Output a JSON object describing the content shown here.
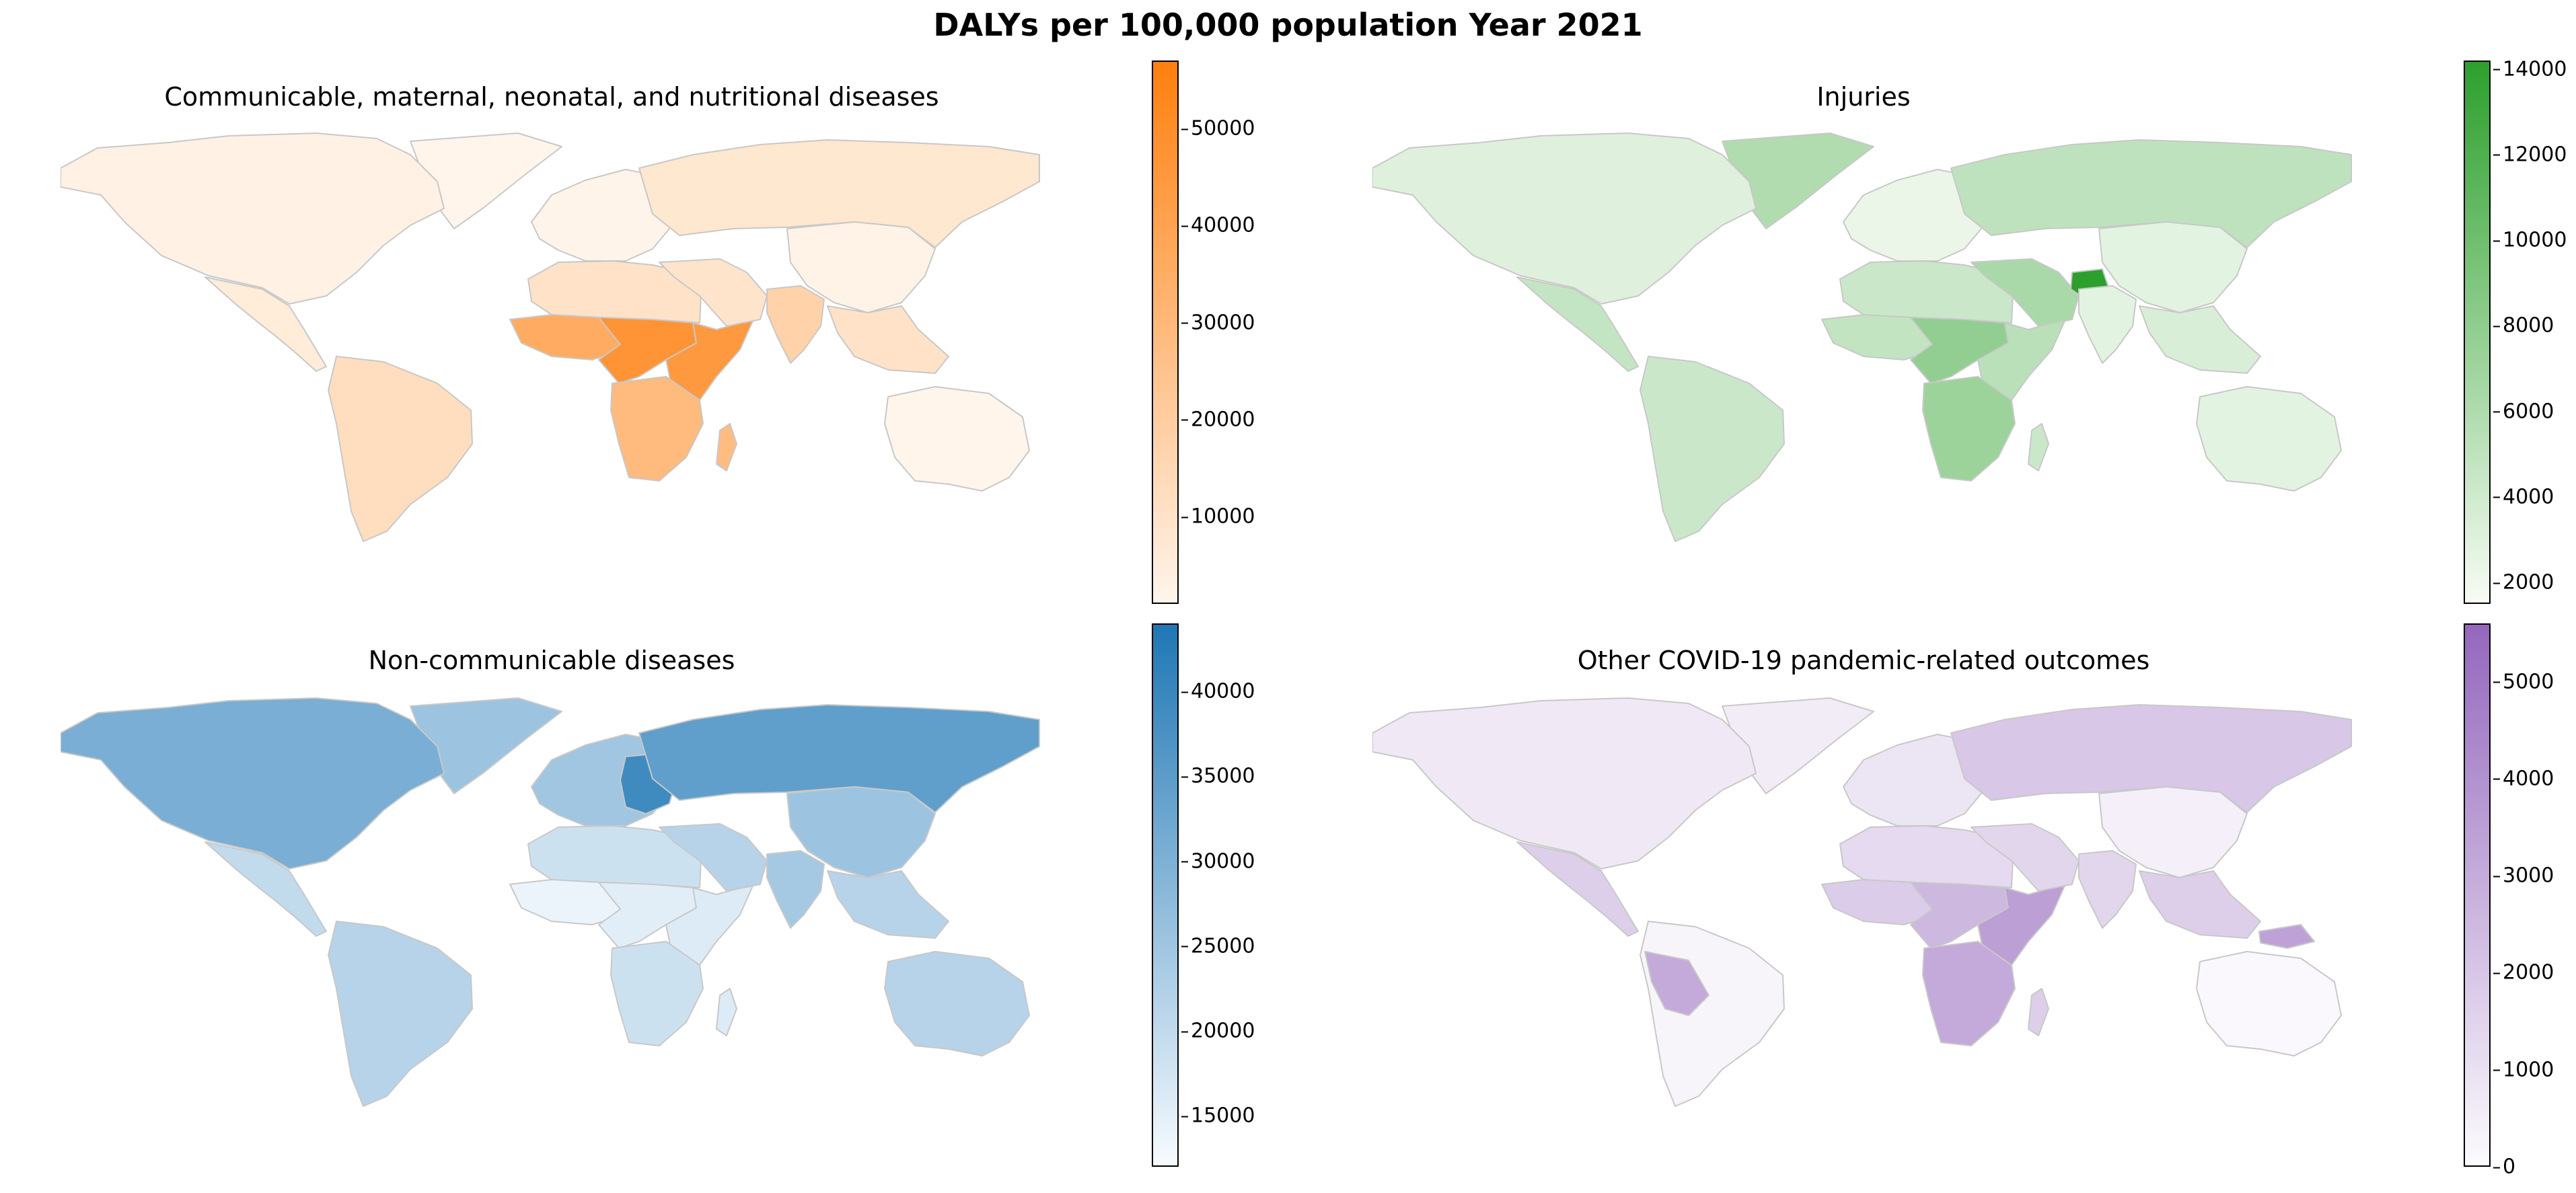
{
  "figure": {
    "title": "DALYs per 100,000 population Year 2021"
  },
  "panels": [
    {
      "title": "Communicable, maternal, neonatal, and nutritional diseases",
      "colorbar": {
        "min": 1000,
        "max": 57000,
        "ticks": [
          "10000",
          "20000",
          "30000",
          "40000",
          "50000"
        ],
        "low_color": "#fff5eb",
        "high_color": "#ff7f0e"
      },
      "regions": {
        "north_america": 0.03,
        "greenland": 0.0,
        "central_america": 0.08,
        "south_america": 0.2,
        "europe": 0.01,
        "russia": 0.12,
        "north_africa": 0.16,
        "west_africa": 0.62,
        "central_africa": 0.82,
        "east_africa": 0.78,
        "southern_africa": 0.5,
        "madagascar": 0.48,
        "middle_east": 0.14,
        "south_asia": 0.3,
        "china": 0.02,
        "southeast_asia": 0.16,
        "australia": 0.0
      }
    },
    {
      "title": "Injuries",
      "colorbar": {
        "min": 1500,
        "max": 14200,
        "ticks": [
          "2000",
          "4000",
          "6000",
          "8000",
          "10000",
          "12000",
          "14000"
        ],
        "low_color": "#f7fcf5",
        "high_color": "#2ca02c"
      },
      "regions": {
        "north_america": 0.12,
        "greenland": 0.35,
        "central_america": 0.25,
        "south_america": 0.22,
        "europe": 0.06,
        "russia": 0.28,
        "north_africa": 0.22,
        "west_africa": 0.26,
        "central_africa": 0.5,
        "east_africa": 0.3,
        "southern_africa": 0.45,
        "madagascar": 0.22,
        "middle_east": 0.38,
        "afghanistan": 1.0,
        "south_asia": 0.1,
        "china": 0.1,
        "southeast_asia": 0.15,
        "australia": 0.1
      }
    },
    {
      "title": "Non-communicable diseases",
      "colorbar": {
        "min": 12000,
        "max": 44000,
        "ticks": [
          "15000",
          "20000",
          "25000",
          "30000",
          "35000",
          "40000"
        ],
        "low_color": "#f7fbff",
        "high_color": "#1f77b4"
      },
      "regions": {
        "north_america": 0.58,
        "greenland": 0.42,
        "central_america": 0.25,
        "south_america": 0.3,
        "europe": 0.4,
        "eastern_europe": 0.85,
        "russia": 0.7,
        "north_africa": 0.2,
        "west_africa": 0.05,
        "central_africa": 0.1,
        "east_africa": 0.12,
        "southern_africa": 0.2,
        "madagascar": 0.12,
        "middle_east": 0.3,
        "south_asia": 0.38,
        "china": 0.42,
        "southeast_asia": 0.3,
        "australia": 0.3
      }
    },
    {
      "title": "Other COVID-19 pandemic-related outcomes",
      "colorbar": {
        "min": 0,
        "max": 5600,
        "ticks": [
          "0",
          "1000",
          "2000",
          "3000",
          "4000",
          "5000"
        ],
        "low_color": "#fcfbfd",
        "high_color": "#9467bd"
      },
      "regions": {
        "north_america": 0.12,
        "greenland": 0.1,
        "central_america": 0.3,
        "south_america": 0.05,
        "peru_bolivia": 0.55,
        "europe": 0.15,
        "russia": 0.35,
        "north_africa": 0.22,
        "west_africa": 0.32,
        "central_africa": 0.45,
        "east_africa": 0.62,
        "southern_africa": 0.55,
        "madagascar": 0.3,
        "middle_east": 0.25,
        "south_asia": 0.25,
        "china": 0.08,
        "southeast_asia": 0.3,
        "png": 0.6,
        "australia": 0.02
      }
    }
  ]
}
